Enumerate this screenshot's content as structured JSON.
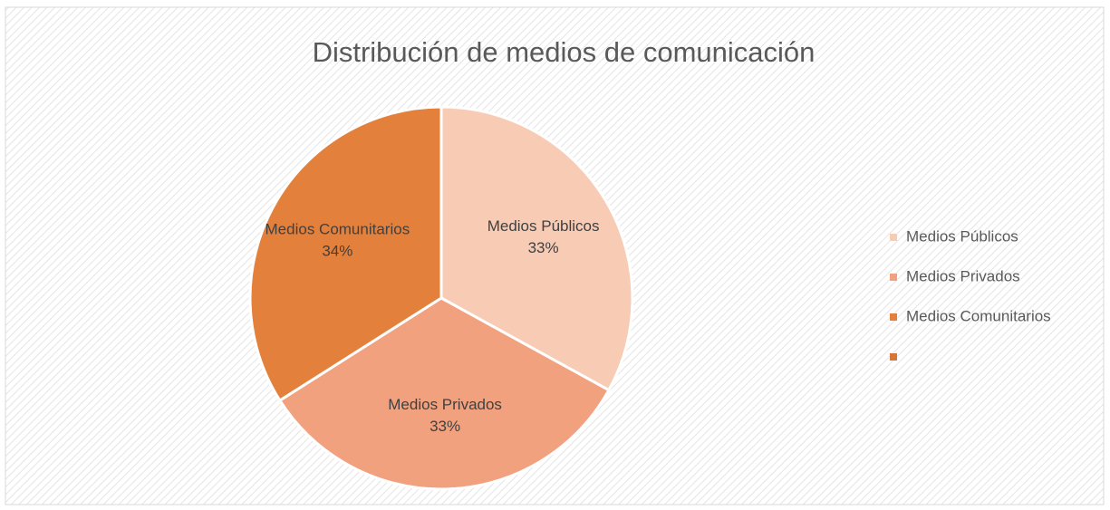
{
  "chart_data": {
    "type": "pie",
    "title": "Distribución de medios de comunicación",
    "categories": [
      "Medios Públicos",
      "Medios Privados",
      "Medios Comunitarios",
      null
    ],
    "values": [
      33,
      33,
      34,
      0
    ],
    "value_labels": [
      "33%",
      "33%",
      "34%",
      null
    ],
    "colors": [
      "#f8cbb5",
      "#f2a17f",
      "#e3803c",
      "#d6763a"
    ],
    "legend": "right"
  }
}
